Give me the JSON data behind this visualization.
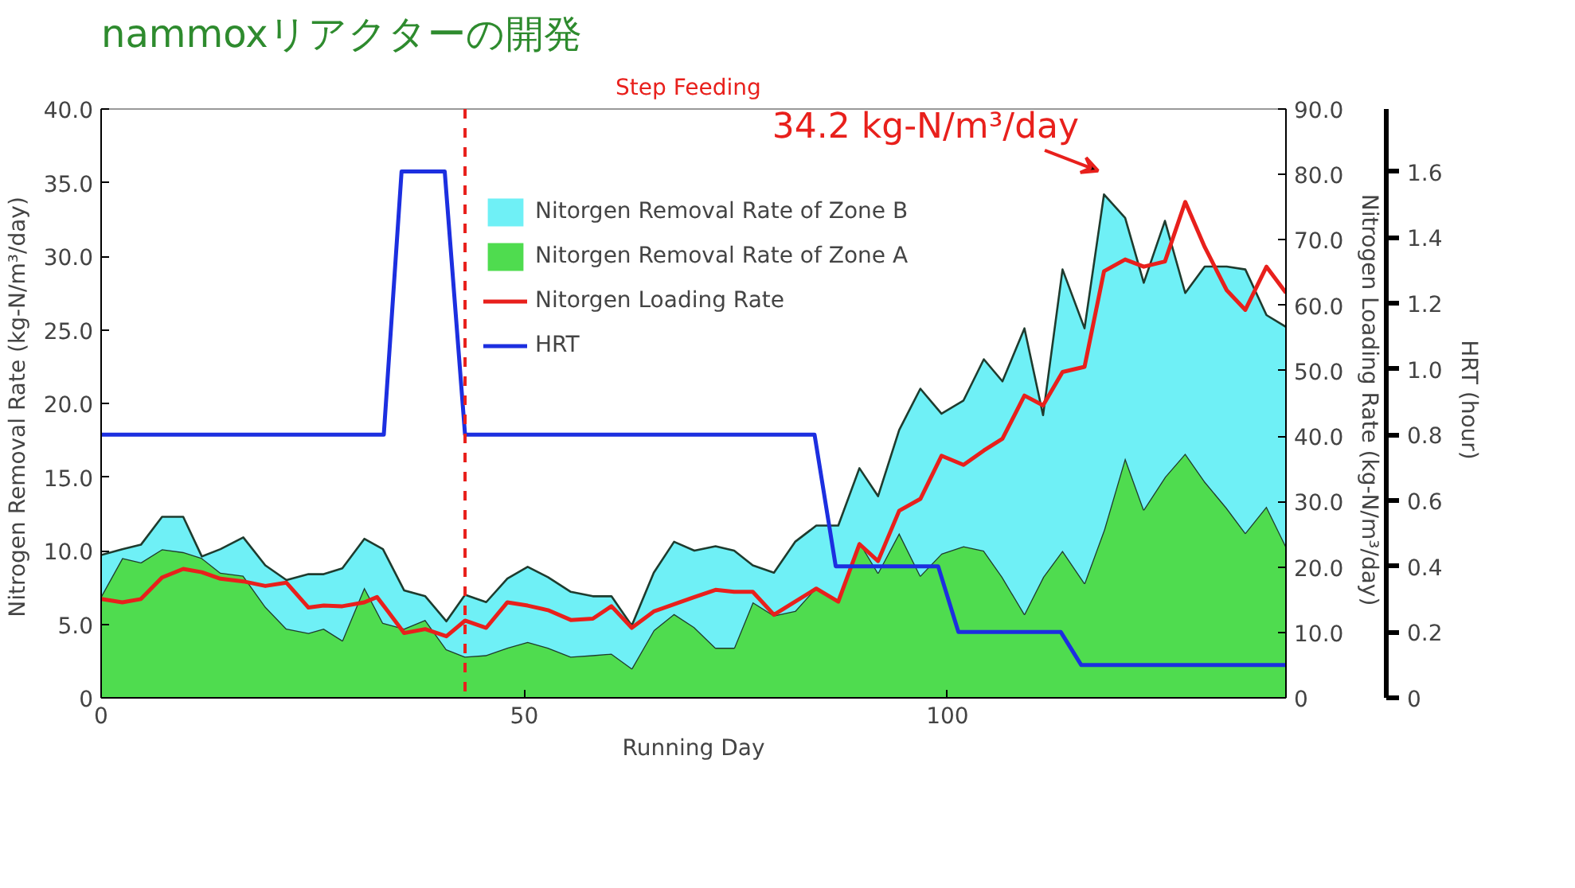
{
  "chart_data": {
    "type": "area",
    "title": "nammoxリアクターの開発",
    "xlabel": "Running Day",
    "ylabel": "Nitrogen Removal Rate  (kg-N/m³/day)",
    "y2label": "Nitrogen Loading Rate  (kg-N/m³/day)",
    "y3label": "HRT  (hour)",
    "x": [
      0,
      2.5,
      4.7,
      7.2,
      9.7,
      11.9,
      14.1,
      16.8,
      19.4,
      21.9,
      24.5,
      26.3,
      28.5,
      31.1,
      33.3,
      35.8,
      38.3,
      40.8,
      43,
      45.5,
      48,
      50.4,
      52.8,
      55.5,
      58.1,
      60.3,
      62.7,
      65.3,
      67.7,
      70.1,
      72.6,
      74.8,
      77.0,
      79.5,
      82.0,
      84.5,
      87.1,
      89.6,
      91.8,
      94.3,
      96.8,
      99.3,
      101.9,
      104.3,
      106.5,
      109.1,
      111.3,
      113.6,
      116.2,
      118.5,
      121.0,
      123.2,
      125.7,
      128.1,
      130.4,
      133.0,
      135.2,
      137.7,
      140
    ],
    "stacked": true,
    "series": [
      {
        "name": "Nitorgen Removal Rate of Zone A",
        "color": "#4fdc4f",
        "values": [
          6.9,
          9.5,
          9.2,
          10.1,
          9.9,
          9.5,
          8.5,
          8.3,
          6.2,
          4.7,
          4.4,
          4.7,
          3.9,
          7.5,
          5.1,
          4.7,
          5.3,
          3.3,
          2.8,
          2.9,
          3.4,
          3.8,
          3.4,
          2.8,
          2.9,
          3.0,
          2.0,
          4.6,
          5.7,
          4.8,
          3.4,
          3.4,
          6.5,
          5.6,
          5.9,
          7.5,
          6.5,
          10.6,
          8.5,
          11.2,
          8.3,
          9.8,
          10.3,
          10.0,
          8.2,
          5.7,
          8.2,
          10.0,
          7.8,
          11.4,
          16.3,
          12.8,
          15.0,
          16.6,
          14.7,
          12.9,
          11.2,
          13.0,
          10.3
        ]
      },
      {
        "name": "Nitorgen Removal Rate of Zone B",
        "color": "#6ff0f6",
        "values": [
          2.8,
          0.6,
          1.2,
          2.2,
          2.4,
          0.1,
          1.6,
          2.6,
          2.8,
          3.3,
          4.0,
          3.7,
          4.9,
          3.3,
          5.0,
          2.6,
          1.6,
          1.9,
          4.2,
          3.6,
          4.7,
          5.1,
          4.8,
          4.4,
          4.0,
          3.9,
          2.9,
          3.9,
          4.9,
          5.2,
          6.9,
          6.6,
          2.5,
          2.9,
          4.7,
          4.2,
          5.2,
          5.0,
          5.2,
          7.0,
          12.7,
          9.5,
          9.9,
          13.0,
          13.3,
          19.4,
          11.0,
          19.1,
          17.3,
          22.8,
          16.3,
          15.4,
          17.4,
          10.9,
          14.6,
          16.4,
          17.9,
          13.0,
          14.9
        ]
      },
      {
        "name": "Nitorgen Loading Rate",
        "type": "line",
        "axis": "y2",
        "color": "#e8201c",
        "x": [
          0,
          2.5,
          4.7,
          7.2,
          9.7,
          11.9,
          14.1,
          16.8,
          19.4,
          21.9,
          24.5,
          26.3,
          28.5,
          31.1,
          32.6,
          33.9,
          35.8,
          38.3,
          40.8,
          43,
          45.5,
          48,
          50.4,
          52.8,
          55.5,
          58.1,
          60.3,
          62.7,
          65.3,
          67.7,
          70.1,
          72.6,
          74.8,
          77.0,
          79.5,
          82.0,
          84.5,
          87.1,
          89.6,
          91.8,
          94.3,
          96.8,
          99.3,
          101.9,
          104.3,
          106.5,
          109.1,
          111.3,
          113.6,
          116.2,
          118.5,
          121.0,
          123.2,
          125.7,
          128.1,
          130.4,
          133.0,
          135.2,
          137.7,
          140
        ],
        "values": [
          15.1,
          14.6,
          15.1,
          18.4,
          19.7,
          19.2,
          18.2,
          17.8,
          17.1,
          17.6,
          13.8,
          14.1,
          14.0,
          14.6,
          15.4,
          13.2,
          9.9,
          10.5,
          9.4,
          11.8,
          10.7,
          14.6,
          14.1,
          13.4,
          11.9,
          12.1,
          14.0,
          10.7,
          13.2,
          14.3,
          15.4,
          16.5,
          16.2,
          16.2,
          12.7,
          14.7,
          16.7,
          14.7,
          23.5,
          20.9,
          28.6,
          30.4,
          37.0,
          35.6,
          37.8,
          39.6,
          46.2,
          44.7,
          49.8,
          50.6,
          65.2,
          67.0,
          65.9,
          66.7,
          75.8,
          68.9,
          62.3,
          59.3,
          65.9,
          61.9
        ]
      },
      {
        "name": "HRT",
        "type": "line",
        "axis": "y3",
        "color": "#1c2fe0",
        "x": [
          0,
          33.4,
          35.5,
          40.6,
          43,
          84.3,
          86.8,
          98.9,
          101.3,
          113.4,
          115.8,
          140
        ],
        "values": [
          0.8,
          0.8,
          1.6,
          1.6,
          0.8,
          0.8,
          0.4,
          0.4,
          0.2,
          0.2,
          0.1,
          0.1
        ]
      }
    ],
    "xlim": [
      0,
      140
    ],
    "xticks": [
      0,
      50,
      100
    ],
    "ylim": [
      0,
      40
    ],
    "yticks": [
      {
        "value": 0,
        "label": "0"
      },
      {
        "value": 5,
        "label": "5.0"
      },
      {
        "value": 10,
        "label": "10.0"
      },
      {
        "value": 15,
        "label": "15.0"
      },
      {
        "value": 20,
        "label": "20.0"
      },
      {
        "value": 25,
        "label": "25.0"
      },
      {
        "value": 30,
        "label": "30.0"
      },
      {
        "value": 35,
        "label": "35.0"
      },
      {
        "value": 40,
        "label": "40.0"
      }
    ],
    "y2lim": [
      0,
      90
    ],
    "y2ticks": [
      {
        "value": 0,
        "label": "0"
      },
      {
        "value": 10,
        "label": "10.0"
      },
      {
        "value": 20,
        "label": "20.0"
      },
      {
        "value": 30,
        "label": "30.0"
      },
      {
        "value": 40,
        "label": "40.0"
      },
      {
        "value": 50,
        "label": "50.0"
      },
      {
        "value": 60,
        "label": "60.0"
      },
      {
        "value": 70,
        "label": "70.0"
      },
      {
        "value": 80,
        "label": "80.0"
      },
      {
        "value": 90,
        "label": "90.0"
      }
    ],
    "y3lim": [
      0,
      1.79
    ],
    "y3ticks": [
      0,
      0.2,
      0.4,
      0.6,
      0.8,
      {
        "value": 1,
        "label": "1.0"
      },
      1.2,
      1.4,
      1.6
    ],
    "ref_lines": [
      {
        "axis": "x",
        "value": 43,
        "label": "Step Feeding",
        "color": "#e8201c",
        "line_style": "dashed"
      }
    ],
    "annotations": [
      {
        "text": "34.2 kg-N/m³/day",
        "x": 118.5,
        "y": 34.2
      }
    ],
    "legend": "top",
    "grid": false
  }
}
